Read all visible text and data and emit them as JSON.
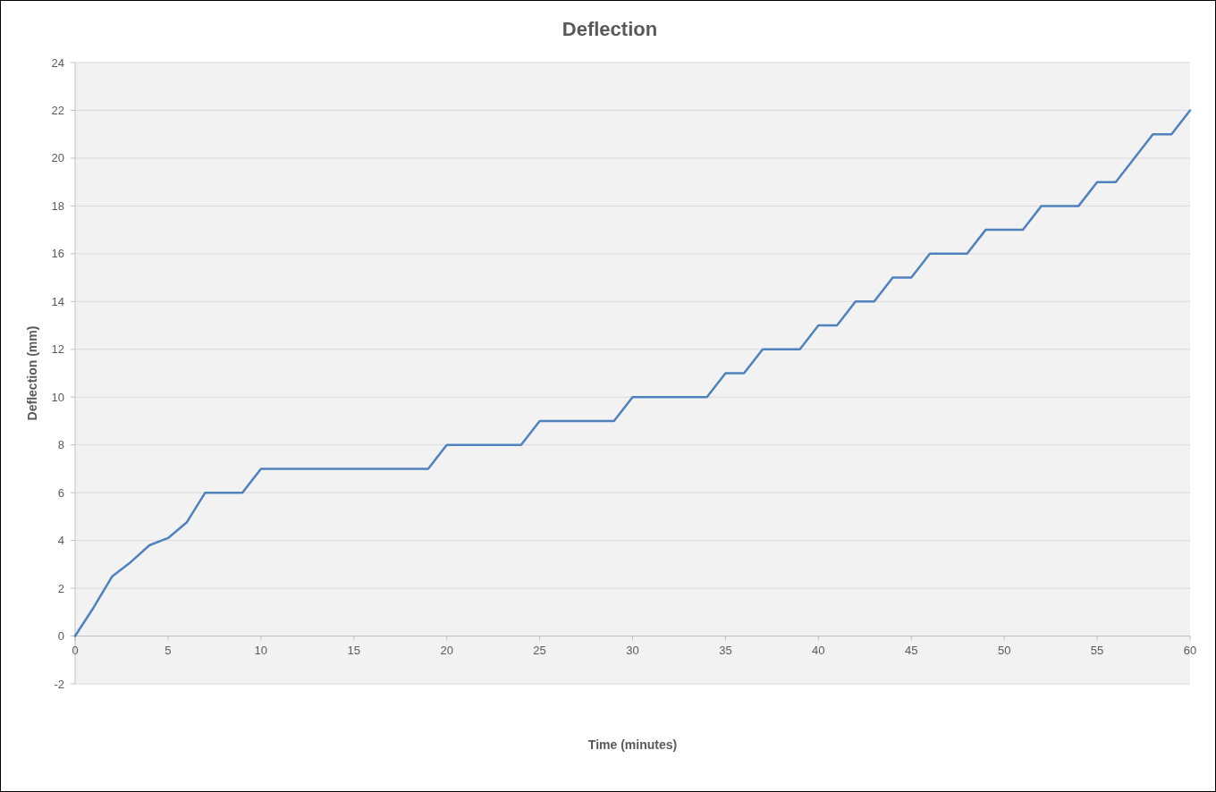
{
  "chart_data": {
    "type": "line",
    "title": "Deflection",
    "xlabel": "Time (minutes)",
    "ylabel": "Deflection (mm)",
    "x": [
      0,
      1,
      2,
      3,
      4,
      5,
      6,
      7,
      8,
      9,
      10,
      11,
      12,
      13,
      14,
      15,
      16,
      17,
      18,
      19,
      20,
      21,
      22,
      23,
      24,
      25,
      26,
      27,
      28,
      29,
      30,
      31,
      32,
      33,
      34,
      35,
      36,
      37,
      38,
      39,
      40,
      41,
      42,
      43,
      44,
      45,
      46,
      47,
      48,
      49,
      50,
      51,
      52,
      53,
      54,
      55,
      56,
      57,
      58,
      59,
      60
    ],
    "series": [
      {
        "color": "#4f81bd",
        "values": [
          0,
          1.2,
          2.5,
          3.1,
          3.8,
          4.1,
          4.75,
          6,
          6,
          6,
          7,
          7,
          7,
          7,
          7,
          7,
          7,
          7,
          7,
          7,
          8,
          8,
          8,
          8,
          8,
          9,
          9,
          9,
          9,
          9,
          10,
          10,
          10,
          10,
          10,
          11,
          11,
          12,
          12,
          12,
          13,
          13,
          14,
          14,
          15,
          15,
          16,
          16,
          16,
          17,
          17,
          17,
          18,
          18,
          18,
          19,
          19,
          20,
          21,
          21,
          22
        ]
      }
    ],
    "xlim": [
      0,
      60
    ],
    "xticks": [
      0,
      5,
      10,
      15,
      20,
      25,
      30,
      35,
      40,
      45,
      50,
      55,
      60
    ],
    "ylim": [
      -2,
      24
    ],
    "yticks": [
      -2,
      0,
      2,
      4,
      6,
      8,
      10,
      12,
      14,
      16,
      18,
      20,
      22,
      24
    ],
    "grid": "y",
    "marker": "none",
    "line_style": "solid"
  }
}
